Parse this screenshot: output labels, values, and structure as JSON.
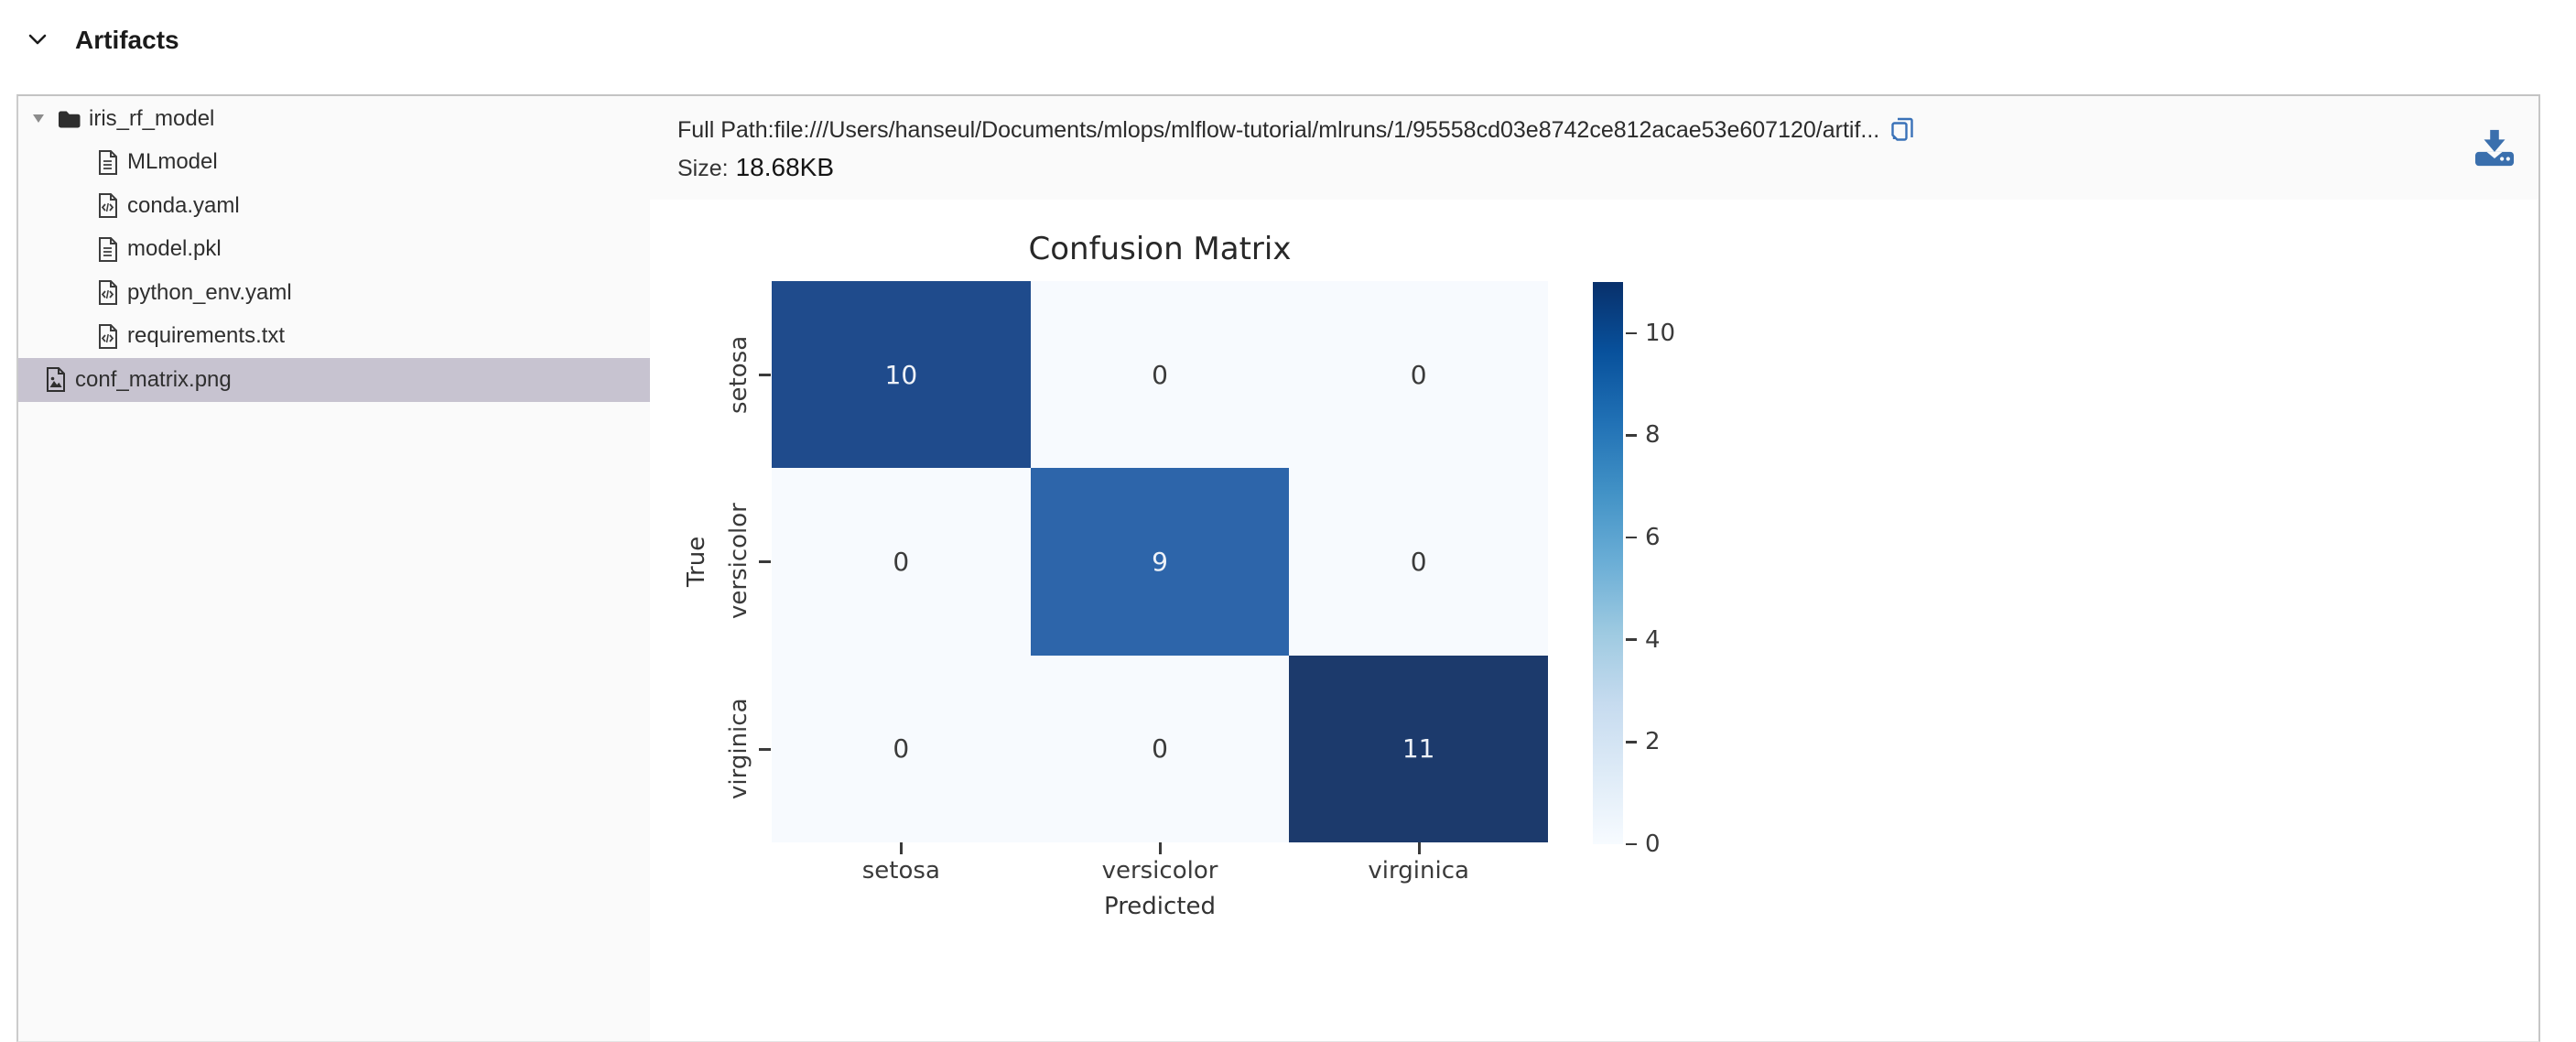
{
  "header": {
    "title": "Artifacts"
  },
  "sidebar": {
    "selected_bg": "#c7c3d0",
    "tree": {
      "root": {
        "label": "iris_rf_model",
        "icon": "folder",
        "expanded": true
      },
      "children": [
        {
          "label": "MLmodel",
          "icon": "file-text"
        },
        {
          "label": "conda.yaml",
          "icon": "file-code"
        },
        {
          "label": "model.pkl",
          "icon": "file-text"
        },
        {
          "label": "python_env.yaml",
          "icon": "file-code"
        },
        {
          "label": "requirements.txt",
          "icon": "file-code"
        }
      ],
      "selected": {
        "label": "conf_matrix.png",
        "icon": "file-image"
      }
    }
  },
  "detail": {
    "full_path": "Full Path:file:///Users/hanseul/Documents/mlops/mlflow-tutorial/mlruns/1/95558cd03e8742ce812acae53e607120/artif...",
    "size_label": "Size:",
    "size_value": "18.68KB",
    "copy_icon_color": "#3a72b8",
    "download_icon_color": "#3a6fad"
  },
  "chart_data": {
    "type": "heatmap",
    "title": "Confusion Matrix",
    "xlabel": "Predicted",
    "ylabel": "True",
    "x_categories": [
      "setosa",
      "versicolor",
      "virginica"
    ],
    "y_categories": [
      "setosa",
      "versicolor",
      "virginica"
    ],
    "matrix": [
      [
        10,
        0,
        0
      ],
      [
        0,
        9,
        0
      ],
      [
        0,
        0,
        11
      ]
    ],
    "cells": [
      "10",
      "0",
      "0",
      "0",
      "9",
      "0",
      "0",
      "0",
      "11"
    ],
    "cell_colors": [
      "#1f4b8c",
      "#f7fafe",
      "#f7fafe",
      "#f7fafe",
      "#2d65aa",
      "#f7fafe",
      "#f7fafe",
      "#f7fafe",
      "#1c3a6c"
    ],
    "cell_text_colors": [
      "#eef2f8",
      "#3b3b3b",
      "#3b3b3b",
      "#3b3b3b",
      "#eef2f8",
      "#3b3b3b",
      "#3b3b3b",
      "#3b3b3b",
      "#eef2f8"
    ],
    "colormap": "Blues",
    "grid": false,
    "legend_position": "right",
    "colorbar": {
      "min": 0,
      "max": 11,
      "ticks": [
        10,
        8,
        6,
        4,
        2,
        0
      ],
      "gradient_stops": [
        "#f7fbff 0%",
        "#deebf7 12.5%",
        "#c6dbef 25%",
        "#9ecae1 37.5%",
        "#6baed6 50%",
        "#4292c6 62.5%",
        "#2171b5 75%",
        "#08519c 87.5%",
        "#08306b 100%"
      ]
    }
  }
}
